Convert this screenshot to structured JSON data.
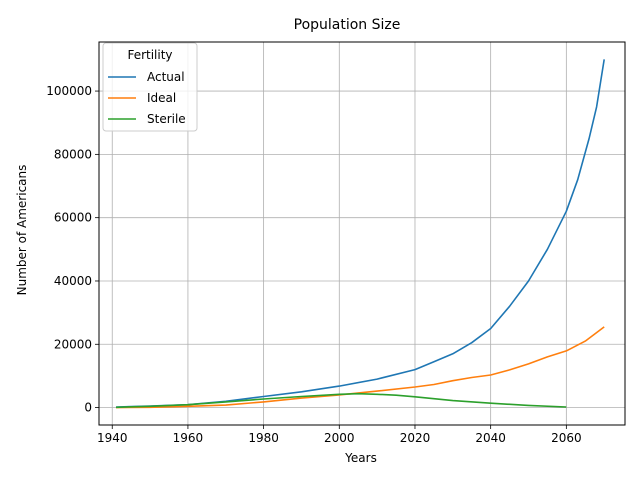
{
  "chart_data": {
    "type": "line",
    "title": "Population Size",
    "xlabel": "Years",
    "ylabel": "Number of Americans",
    "xlim": [
      1936.5,
      2075.5
    ],
    "ylim": [
      -5500,
      115500
    ],
    "xticks": [
      1940,
      1960,
      1980,
      2000,
      2020,
      2040,
      2060
    ],
    "yticks": [
      0,
      20000,
      40000,
      60000,
      80000,
      100000
    ],
    "grid": true,
    "legend": {
      "title": "Fertility",
      "placement": "top-left"
    },
    "series": [
      {
        "name": "Actual",
        "color": "#1f77b4",
        "points": [
          [
            1941,
            200
          ],
          [
            1950,
            500
          ],
          [
            1960,
            900
          ],
          [
            1970,
            2000
          ],
          [
            1980,
            3500
          ],
          [
            1990,
            5000
          ],
          [
            2000,
            6800
          ],
          [
            2010,
            9000
          ],
          [
            2020,
            12000
          ],
          [
            2025,
            14500
          ],
          [
            2030,
            17000
          ],
          [
            2035,
            20500
          ],
          [
            2040,
            25000
          ],
          [
            2045,
            32000
          ],
          [
            2050,
            40000
          ],
          [
            2055,
            50000
          ],
          [
            2060,
            62000
          ],
          [
            2063,
            72000
          ],
          [
            2066,
            85000
          ],
          [
            2068,
            95000
          ],
          [
            2070,
            110000
          ]
        ]
      },
      {
        "name": "Ideal",
        "color": "#ff7f0e",
        "points": [
          [
            1941,
            0
          ],
          [
            1950,
            100
          ],
          [
            1960,
            400
          ],
          [
            1970,
            800
          ],
          [
            1980,
            1800
          ],
          [
            1990,
            3000
          ],
          [
            2000,
            4000
          ],
          [
            2010,
            5200
          ],
          [
            2020,
            6500
          ],
          [
            2025,
            7300
          ],
          [
            2030,
            8500
          ],
          [
            2035,
            9500
          ],
          [
            2040,
            10300
          ],
          [
            2045,
            11900
          ],
          [
            2050,
            13800
          ],
          [
            2055,
            16000
          ],
          [
            2060,
            17900
          ],
          [
            2065,
            21000
          ],
          [
            2070,
            25500
          ]
        ]
      },
      {
        "name": "Sterile",
        "color": "#2ca02c",
        "points": [
          [
            1941,
            100
          ],
          [
            1950,
            400
          ],
          [
            1960,
            900
          ],
          [
            1970,
            1800
          ],
          [
            1980,
            2700
          ],
          [
            1990,
            3500
          ],
          [
            2000,
            4200
          ],
          [
            2005,
            4400
          ],
          [
            2010,
            4200
          ],
          [
            2015,
            3900
          ],
          [
            2020,
            3400
          ],
          [
            2025,
            2800
          ],
          [
            2030,
            2200
          ],
          [
            2040,
            1400
          ],
          [
            2050,
            700
          ],
          [
            2060,
            200
          ]
        ]
      }
    ]
  }
}
